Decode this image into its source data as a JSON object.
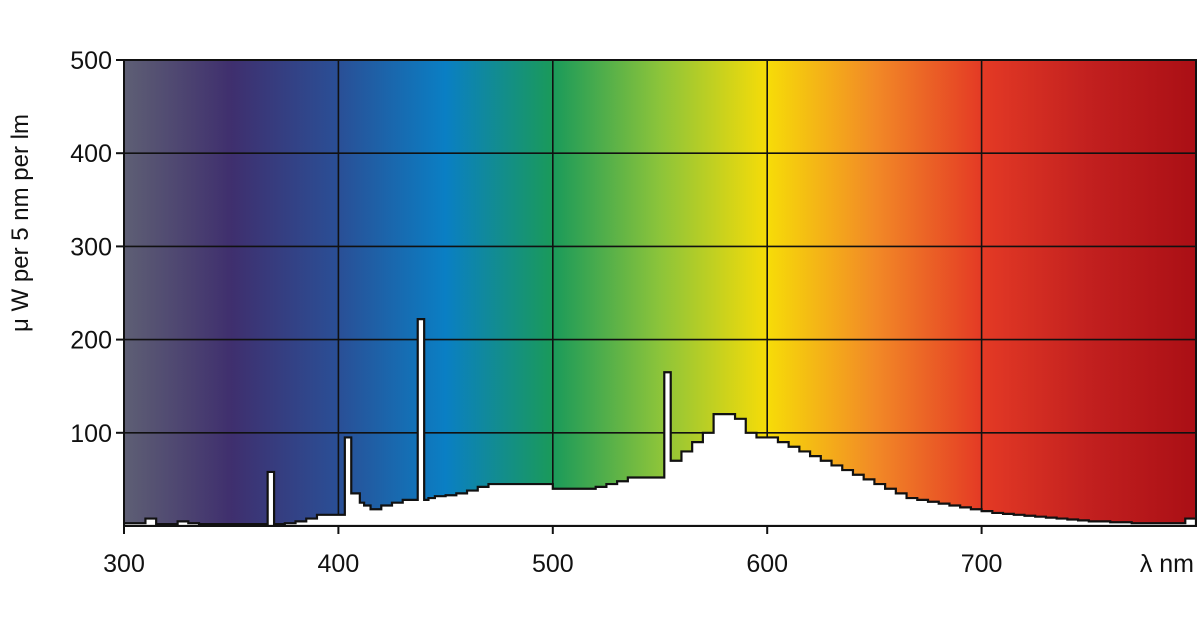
{
  "chart_data": {
    "type": "area",
    "title": "",
    "xlabel": "λ nm",
    "ylabel": "μ W per 5 nm per lm",
    "xlim": [
      300,
      800
    ],
    "ylim": [
      0,
      500
    ],
    "x_ticks": [
      300,
      400,
      500,
      600,
      700
    ],
    "y_ticks": [
      100,
      200,
      300,
      400,
      500
    ],
    "grid": true,
    "background": "visible spectrum gradient",
    "spectrum_colors": [
      "#5e5f74",
      "#3f2f6e",
      "#2a4f96",
      "#0a7fc4",
      "#1a9a5a",
      "#8cc43a",
      "#f6dc08",
      "#f28a26",
      "#e43a25",
      "#c2201f",
      "#aa0f15"
    ],
    "fill_color": "#ffffff",
    "series": [
      {
        "x": [
          300,
          310,
          315,
          320,
          325,
          330,
          335,
          340,
          345,
          350,
          355,
          360,
          365,
          367,
          370,
          372,
          375,
          380,
          385,
          390,
          395,
          400,
          403,
          406,
          408,
          410,
          412,
          415,
          420,
          425,
          430,
          435,
          437,
          440,
          442,
          445,
          450,
          455,
          460,
          465,
          470,
          475,
          480,
          485,
          490,
          495,
          500,
          505,
          510,
          515,
          520,
          525,
          530,
          535,
          540,
          545,
          550,
          552,
          555,
          557,
          560,
          565,
          570,
          575,
          580,
          585,
          590,
          595,
          600,
          605,
          610,
          615,
          620,
          625,
          630,
          635,
          640,
          645,
          650,
          655,
          660,
          665,
          670,
          675,
          680,
          685,
          690,
          695,
          700,
          705,
          710,
          715,
          720,
          725,
          730,
          735,
          740,
          745,
          750,
          755,
          760,
          765,
          770,
          775,
          780,
          785,
          790,
          795,
          800
        ],
        "y": [
          3,
          8,
          2,
          2,
          5,
          3,
          2,
          2,
          2,
          2,
          2,
          2,
          2,
          58,
          2,
          2,
          3,
          5,
          8,
          12,
          12,
          12,
          95,
          35,
          35,
          25,
          22,
          18,
          22,
          25,
          28,
          28,
          222,
          28,
          30,
          32,
          33,
          35,
          38,
          42,
          45,
          45,
          45,
          45,
          45,
          45,
          40,
          40,
          40,
          40,
          42,
          45,
          48,
          52,
          52,
          52,
          52,
          165,
          70,
          70,
          80,
          90,
          100,
          120,
          120,
          115,
          100,
          95,
          95,
          90,
          85,
          80,
          75,
          70,
          65,
          60,
          55,
          50,
          45,
          40,
          35,
          30,
          28,
          26,
          24,
          22,
          20,
          18,
          16,
          14,
          13,
          12,
          11,
          10,
          9,
          8,
          7,
          6,
          5,
          5,
          4,
          4,
          3,
          3,
          3,
          3,
          3,
          8,
          5
        ]
      }
    ]
  }
}
